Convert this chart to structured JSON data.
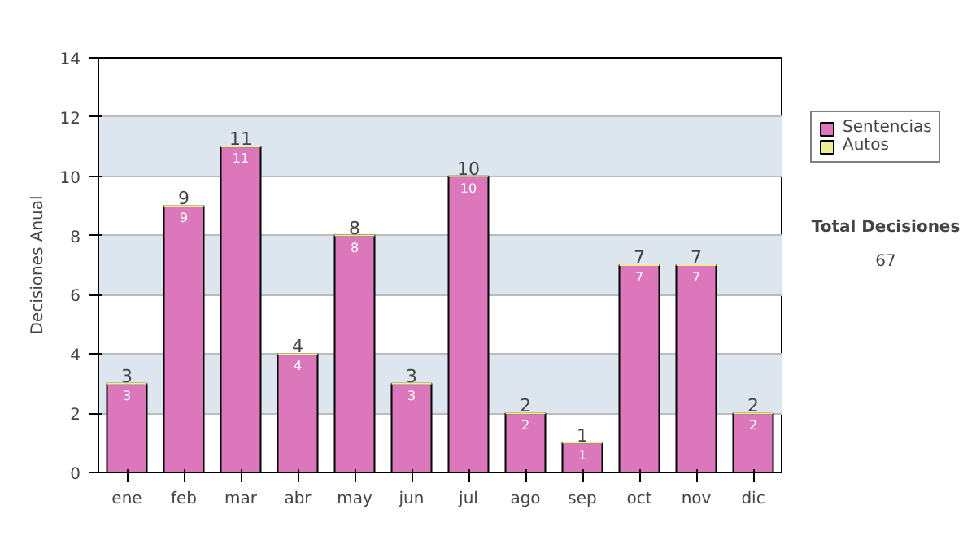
{
  "chart_data": {
    "type": "bar",
    "ylabel": "Decisiones Anual",
    "categories": [
      "ene",
      "feb",
      "mar",
      "abr",
      "may",
      "jun",
      "jul",
      "ago",
      "sep",
      "oct",
      "nov",
      "dic"
    ],
    "series": [
      {
        "name": "Sentencias",
        "color": "#dd77bb",
        "values": [
          3,
          9,
          11,
          4,
          8,
          3,
          10,
          2,
          1,
          7,
          7,
          2
        ],
        "value_labels": [
          "3",
          "9",
          "11",
          "4",
          "8",
          "3",
          "10",
          "2",
          "1",
          "7",
          "7",
          "2"
        ]
      },
      {
        "name": "Autos",
        "color": "#eeee99",
        "values": [
          0,
          0,
          0,
          0,
          0,
          0,
          0,
          0,
          0,
          0,
          0,
          0
        ]
      }
    ],
    "stacked": true,
    "totals": [
      "3",
      "9",
      "11",
      "4",
      "8",
      "3",
      "10",
      "2",
      "1",
      "7",
      "7",
      "2"
    ],
    "ylim": [
      0,
      14
    ],
    "yticks": [
      0,
      2,
      4,
      6,
      8,
      10,
      12,
      14
    ],
    "grid": "y",
    "legend": "right",
    "annotations": [
      "Total Decisiones",
      "67"
    ]
  }
}
